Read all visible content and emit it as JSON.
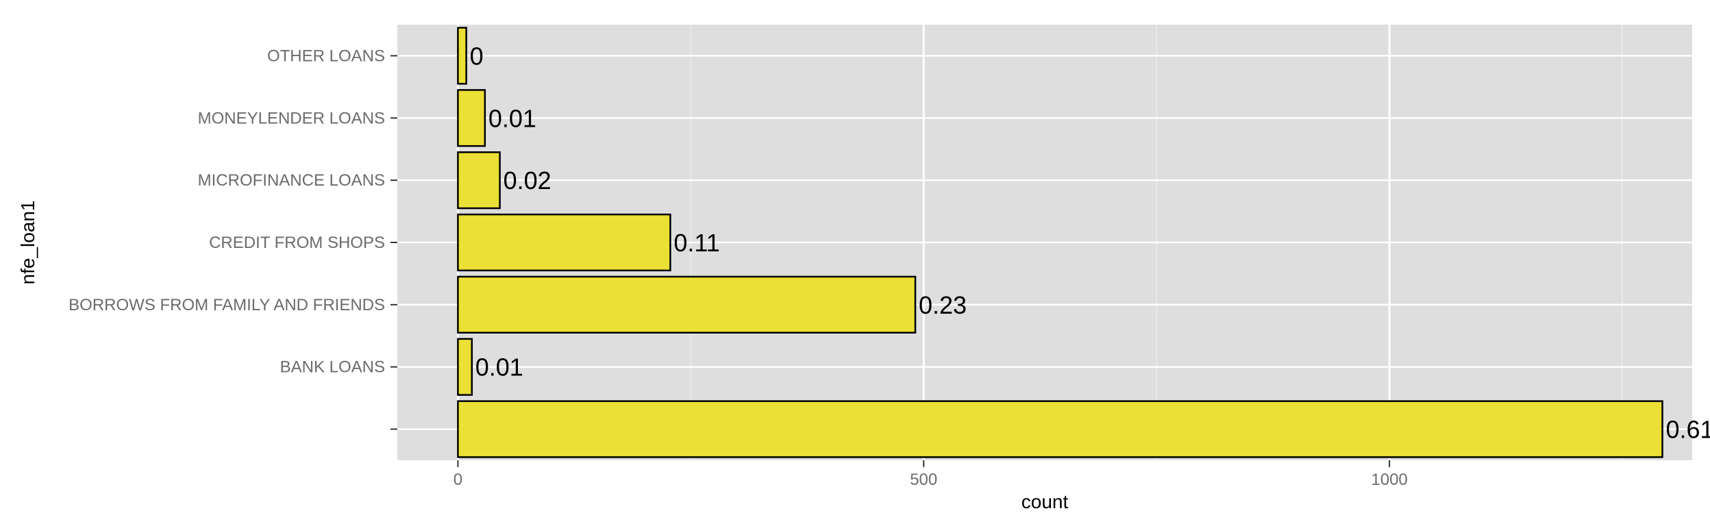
{
  "chart_data": {
    "type": "bar",
    "orientation": "horizontal",
    "categories": [
      "",
      "BANK LOANS",
      "BORROWS FROM FAMILY AND FRIENDS",
      "CREDIT FROM SHOPS",
      "MICROFINANCE LOANS",
      "MONEYLENDER LOANS",
      "OTHER LOANS"
    ],
    "values": [
      1293,
      15,
      491,
      228,
      45,
      29,
      9
    ],
    "data_labels": [
      "0.61",
      "0.01",
      "0.23",
      "0.11",
      "0.02",
      "0.01",
      "0"
    ],
    "xlabel": "count",
    "ylabel": "nfe_loan1",
    "xlim": [
      -65,
      1325
    ],
    "x_ticks": [
      0,
      500,
      1000
    ],
    "x_tick_labels": [
      "0",
      "500",
      "1000"
    ],
    "grid": true,
    "legend": "none",
    "colors": {
      "bar_fill": "#ebe035",
      "bar_stroke": "#000000",
      "panel_background": "#dedede",
      "grid_major": "#ffffff",
      "grid_minor": "#ececec"
    }
  }
}
